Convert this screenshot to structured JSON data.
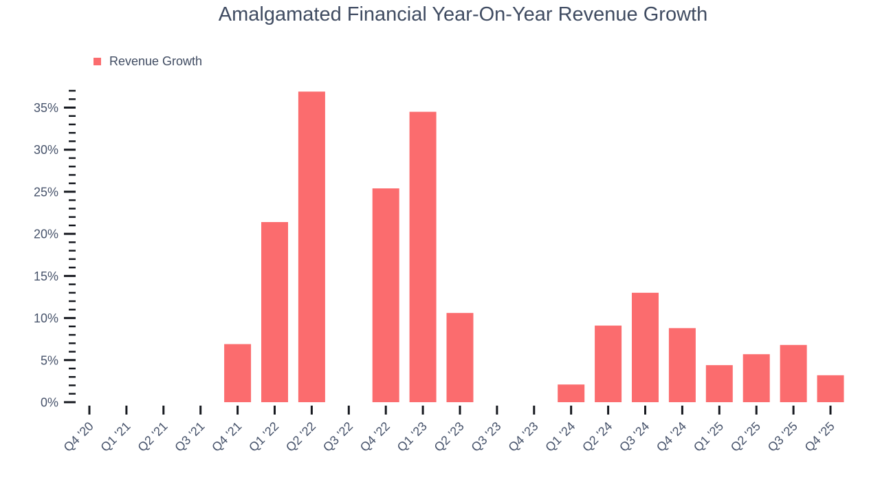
{
  "title": "Amalgamated Financial Year-On-Year Revenue Growth",
  "legend": {
    "label": "Revenue Growth"
  },
  "colors": {
    "bar": "#fb6c6e",
    "text": "#3f4b61",
    "axis_text": "#46526a",
    "tick": "#16191f",
    "background": "#ffffff"
  },
  "chart_data": {
    "type": "bar",
    "title": "Amalgamated Financial Year-On-Year Revenue Growth",
    "xlabel": "",
    "ylabel": "",
    "unit": "%",
    "categories": [
      "Q4 '20",
      "Q1 '21",
      "Q2 '21",
      "Q3 '21",
      "Q4 '21",
      "Q1 '22",
      "Q2 '22",
      "Q3 '22",
      "Q4 '22",
      "Q1 '23",
      "Q2 '23",
      "Q3 '23",
      "Q4 '23",
      "Q1 '24",
      "Q2 '24",
      "Q3 '24",
      "Q4 '24",
      "Q1 '25",
      "Q2 '25",
      "Q3 '25",
      "Q4 '25"
    ],
    "series": [
      {
        "name": "Revenue Growth",
        "values": [
          0,
          0,
          0,
          0,
          6.9,
          21.4,
          36.9,
          0,
          25.4,
          34.5,
          10.6,
          0,
          0,
          2.1,
          9.1,
          13.0,
          8.8,
          4.4,
          5.7,
          6.8,
          3.2
        ]
      }
    ],
    "y_axis": {
      "range": [
        0,
        37
      ],
      "major_tick_step": 5,
      "minor_tick_step": 1,
      "tick_labels": [
        "0%",
        "5%",
        "10%",
        "15%",
        "20%",
        "25%",
        "30%",
        "35%"
      ]
    },
    "x_axis": {
      "label_rotation_deg": -45
    },
    "grid": false,
    "legend_position": "top-left"
  }
}
